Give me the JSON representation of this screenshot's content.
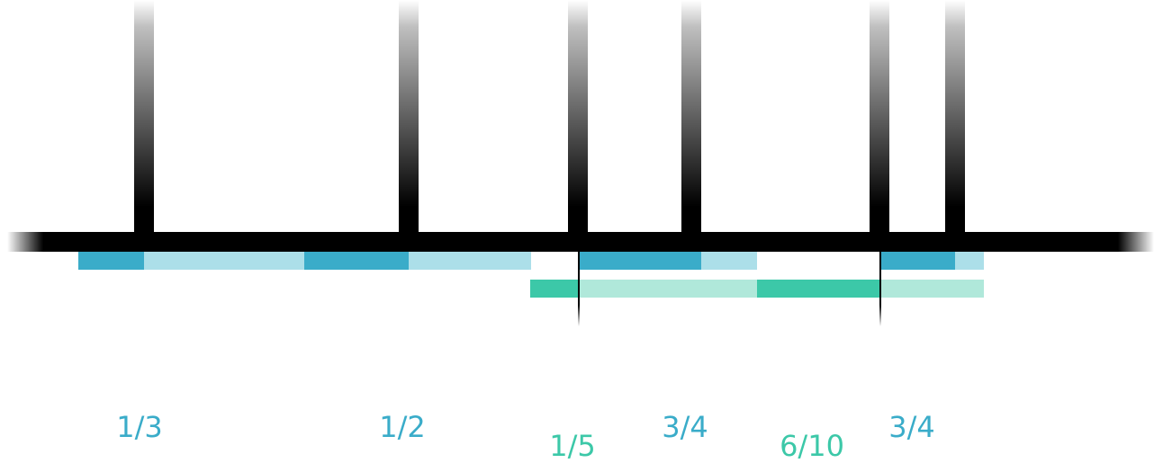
{
  "colors": {
    "axis": "#000000",
    "blue": "#3aacc9",
    "blue_light": "#acdfe9",
    "green": "#3cc8a8",
    "green_light": "#b0e8da"
  },
  "labels": {
    "l1": "1/3",
    "l2": "1/2",
    "l3": "1/5",
    "l4": "3/4",
    "l5": "6/10",
    "l6": "3/4"
  }
}
